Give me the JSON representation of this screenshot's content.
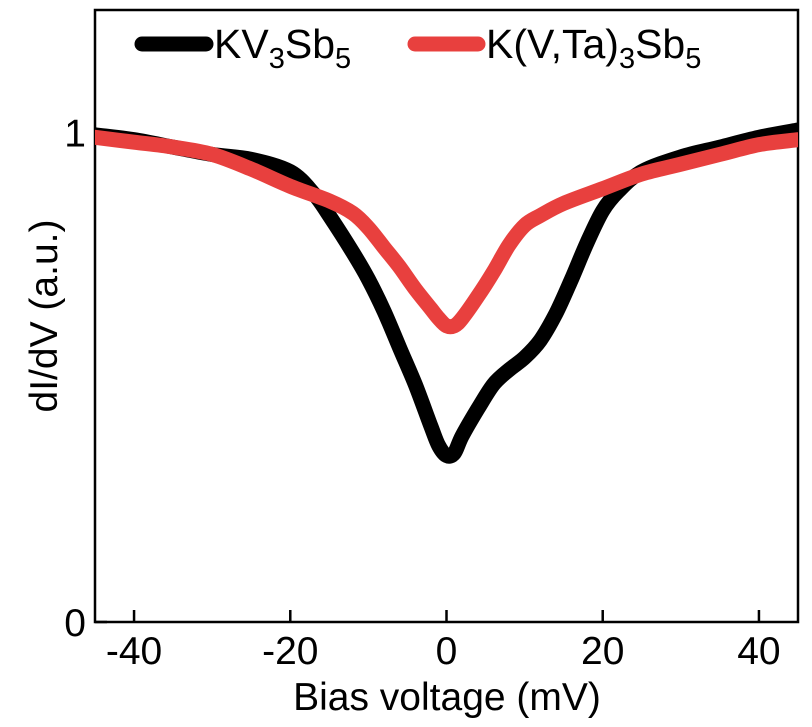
{
  "chart_data": {
    "type": "line",
    "title": "",
    "xlabel": "Bias voltage (mV)",
    "ylabel": "dI/dV (a.u.)",
    "xlim": [
      -45,
      45
    ],
    "ylim": [
      0,
      1.25
    ],
    "x_ticks": [
      -40,
      -20,
      0,
      20,
      40
    ],
    "x_tick_labels": [
      "-40",
      "-20",
      "0",
      "20",
      "40"
    ],
    "y_ticks": [
      0,
      1
    ],
    "y_tick_labels": [
      "0",
      "1"
    ],
    "grid": false,
    "legend_position": "top",
    "series": [
      {
        "name": "KV3Sb5",
        "legend_parts": [
          [
            "KV",
            false
          ],
          [
            "3",
            true
          ],
          [
            "Sb",
            false
          ],
          [
            "5",
            true
          ]
        ],
        "color": "#000000",
        "x": [
          -45,
          -40,
          -35,
          -30,
          -25,
          -20,
          -17,
          -15,
          -12,
          -10,
          -8,
          -6,
          -4,
          -2,
          -1,
          0,
          1,
          2,
          4,
          6,
          8,
          10,
          12,
          14,
          16,
          18,
          20,
          22,
          25,
          30,
          35,
          40,
          45
        ],
        "y": [
          0.995,
          0.985,
          0.97,
          0.955,
          0.945,
          0.92,
          0.875,
          0.83,
          0.755,
          0.7,
          0.635,
          0.56,
          0.485,
          0.4,
          0.36,
          0.34,
          0.345,
          0.38,
          0.435,
          0.485,
          0.515,
          0.54,
          0.575,
          0.63,
          0.7,
          0.775,
          0.84,
          0.88,
          0.92,
          0.95,
          0.97,
          0.99,
          1.005
        ]
      },
      {
        "name": "K(V,Ta)3Sb5",
        "legend_parts": [
          [
            "K(V,Ta)",
            false
          ],
          [
            "3",
            true
          ],
          [
            "Sb",
            false
          ],
          [
            "5",
            true
          ]
        ],
        "color": "#e8403e",
        "x": [
          -45,
          -40,
          -35,
          -30,
          -25,
          -20,
          -15,
          -12,
          -10,
          -8,
          -6,
          -4,
          -2,
          -1,
          0,
          1,
          2,
          4,
          6,
          8,
          10,
          12,
          15,
          20,
          25,
          30,
          35,
          40,
          45
        ],
        "y": [
          0.99,
          0.98,
          0.97,
          0.955,
          0.925,
          0.89,
          0.86,
          0.835,
          0.805,
          0.765,
          0.725,
          0.68,
          0.64,
          0.62,
          0.605,
          0.605,
          0.62,
          0.665,
          0.715,
          0.77,
          0.81,
          0.83,
          0.855,
          0.885,
          0.915,
          0.935,
          0.955,
          0.975,
          0.985
        ]
      }
    ]
  }
}
